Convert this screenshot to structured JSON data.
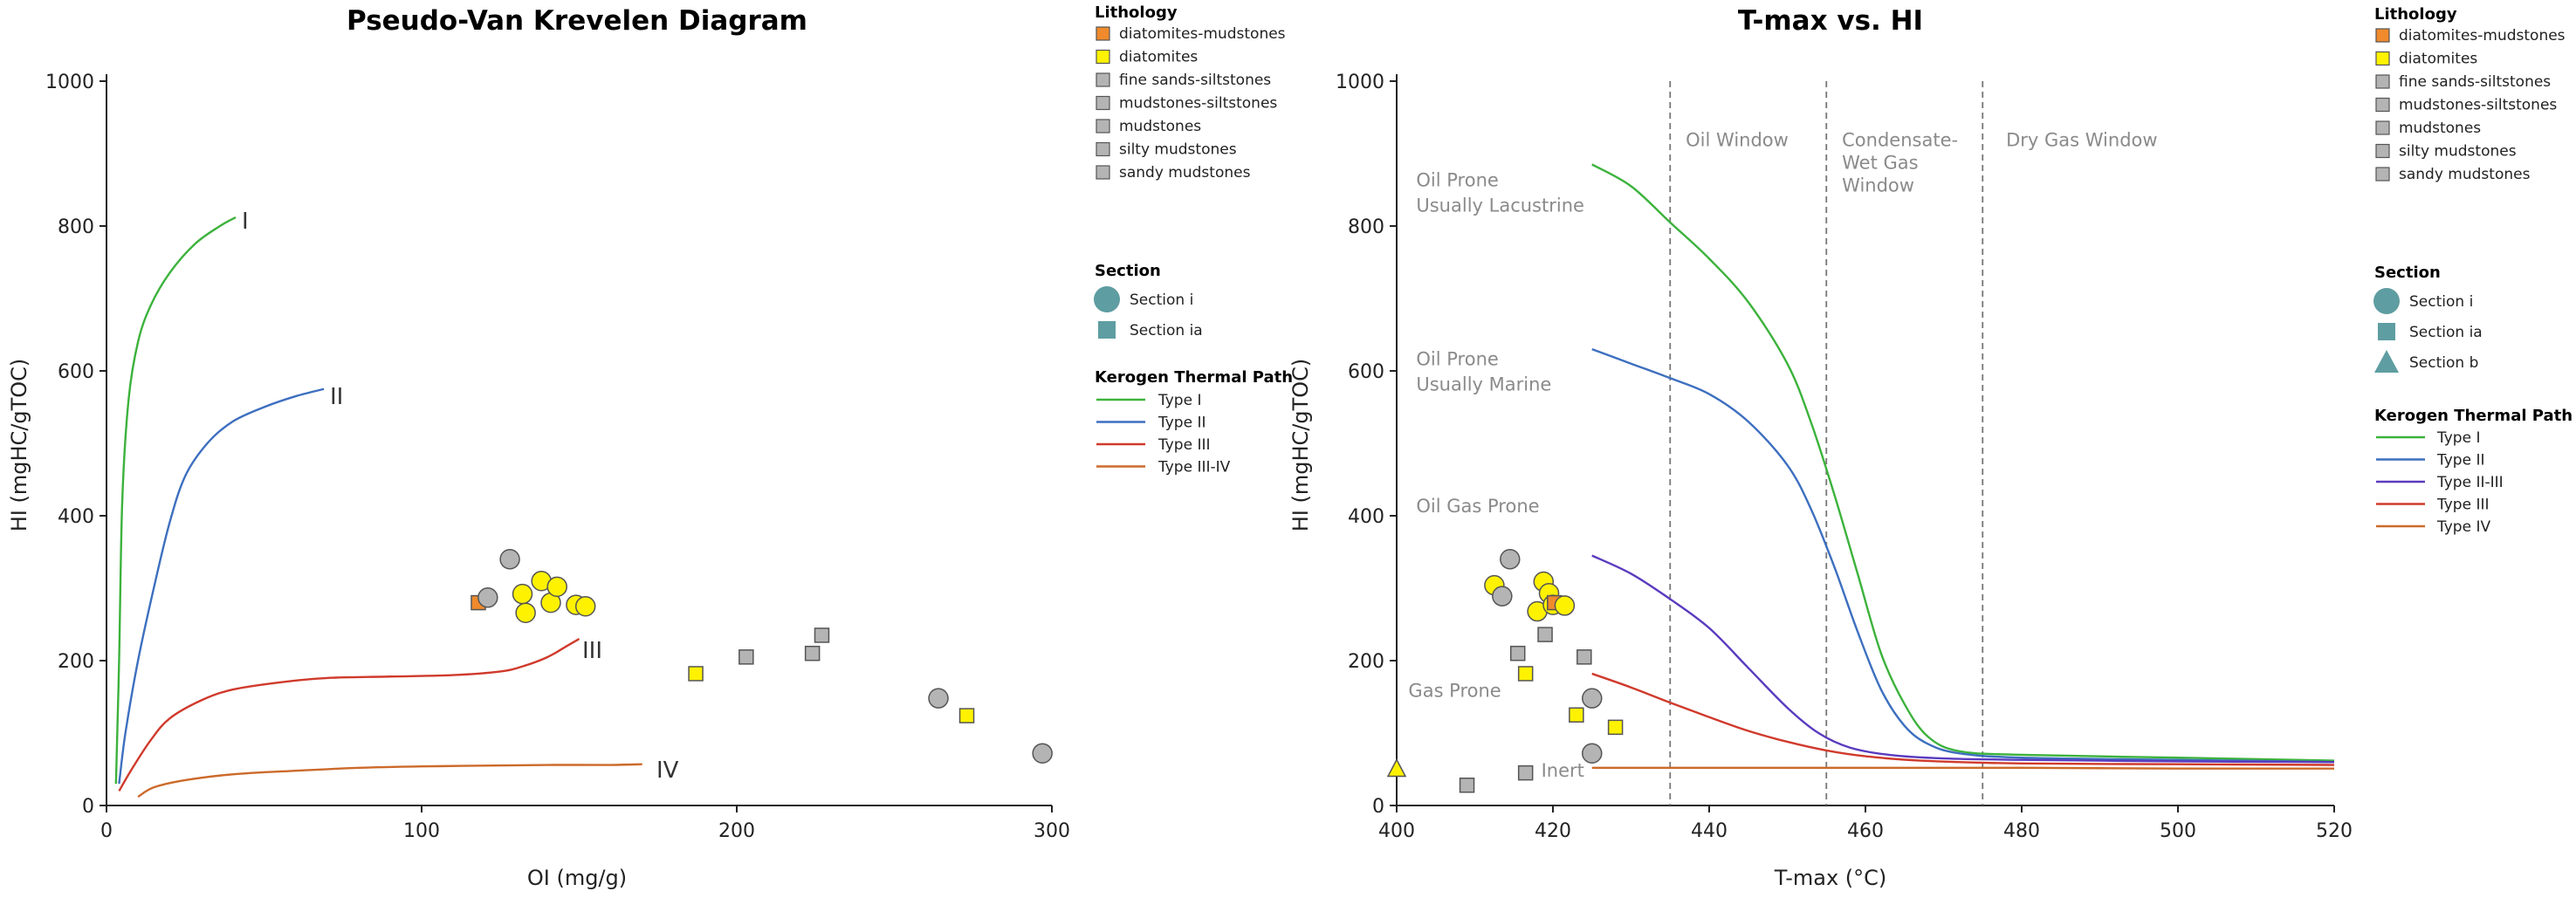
{
  "colors": {
    "diatomites-mudstones": "#f08a2c",
    "diatomites": "#fff200",
    "grey": "#b4b4b4",
    "Type I": "#3cb23c",
    "Type II": "#3d6fbf",
    "Type II-III": "#5a3bbf",
    "Type III": "#d03a2c",
    "Type III-IV": "#cc6a2a",
    "Type IV": "#cc6a2a"
  },
  "chart_data": [
    {
      "type": "scatter",
      "title": "Pseudo-Van Krevelen Diagram",
      "xlabel": "OI (mg/g)",
      "ylabel": "HI (mgHC/gTOC)",
      "xlim": [
        0,
        300
      ],
      "ylim": [
        0,
        1000
      ],
      "xticks": [
        0,
        100,
        200,
        300
      ],
      "yticks": [
        0,
        200,
        400,
        600,
        800,
        1000
      ],
      "curves": [
        {
          "name": "Type I",
          "label": "I",
          "points": [
            [
              3,
              30
            ],
            [
              4,
              200
            ],
            [
              5,
              420
            ],
            [
              7,
              560
            ],
            [
              10,
              640
            ],
            [
              14,
              690
            ],
            [
              20,
              735
            ],
            [
              28,
              775
            ],
            [
              36,
              800
            ],
            [
              41,
              812
            ]
          ]
        },
        {
          "name": "Type II",
          "label": "II",
          "points": [
            [
              4,
              30
            ],
            [
              6,
              100
            ],
            [
              10,
              200
            ],
            [
              15,
              300
            ],
            [
              20,
              390
            ],
            [
              25,
              455
            ],
            [
              32,
              500
            ],
            [
              40,
              530
            ],
            [
              50,
              550
            ],
            [
              60,
              565
            ],
            [
              69,
              575
            ]
          ]
        },
        {
          "name": "Type III",
          "label": "III",
          "points": [
            [
              4,
              20
            ],
            [
              8,
              50
            ],
            [
              14,
              90
            ],
            [
              20,
              120
            ],
            [
              30,
              145
            ],
            [
              40,
              160
            ],
            [
              55,
              170
            ],
            [
              70,
              176
            ],
            [
              90,
              178
            ],
            [
              110,
              180
            ],
            [
              125,
              185
            ],
            [
              132,
              192
            ],
            [
              140,
              205
            ],
            [
              146,
              220
            ],
            [
              150,
              230
            ]
          ]
        },
        {
          "name": "Type III-IV",
          "label": "IV",
          "points": [
            [
              10,
              12
            ],
            [
              15,
              25
            ],
            [
              25,
              35
            ],
            [
              40,
              43
            ],
            [
              60,
              48
            ],
            [
              80,
              52
            ],
            [
              100,
              54
            ],
            [
              120,
              55
            ],
            [
              140,
              56
            ],
            [
              160,
              56
            ],
            [
              170,
              57
            ]
          ]
        }
      ],
      "points": [
        {
          "x": 118,
          "y": 280,
          "lith": "diatomites-mudstones",
          "section": "Section ia"
        },
        {
          "x": 121,
          "y": 287,
          "lith": "mudstones",
          "section": "Section i"
        },
        {
          "x": 128,
          "y": 340,
          "lith": "mudstones",
          "section": "Section i"
        },
        {
          "x": 132,
          "y": 292,
          "lith": "diatomites",
          "section": "Section i"
        },
        {
          "x": 133,
          "y": 266,
          "lith": "diatomites",
          "section": "Section i"
        },
        {
          "x": 138,
          "y": 310,
          "lith": "diatomites",
          "section": "Section i"
        },
        {
          "x": 141,
          "y": 280,
          "lith": "diatomites",
          "section": "Section i"
        },
        {
          "x": 143,
          "y": 302,
          "lith": "diatomites",
          "section": "Section i"
        },
        {
          "x": 149,
          "y": 277,
          "lith": "diatomites",
          "section": "Section i"
        },
        {
          "x": 152,
          "y": 275,
          "lith": "diatomites",
          "section": "Section i"
        },
        {
          "x": 187,
          "y": 182,
          "lith": "diatomites",
          "section": "Section ia"
        },
        {
          "x": 203,
          "y": 205,
          "lith": "fine sands-siltstones",
          "section": "Section ia"
        },
        {
          "x": 224,
          "y": 210,
          "lith": "mudstones-siltstones",
          "section": "Section ia"
        },
        {
          "x": 227,
          "y": 235,
          "lith": "silty mudstones",
          "section": "Section ia"
        },
        {
          "x": 264,
          "y": 148,
          "lith": "mudstones",
          "section": "Section i"
        },
        {
          "x": 273,
          "y": 124,
          "lith": "diatomites",
          "section": "Section ia"
        },
        {
          "x": 297,
          "y": 72,
          "lith": "mudstones",
          "section": "Section i"
        }
      ],
      "legend": {
        "lithology_title": "Lithology",
        "lithology": [
          "diatomites-mudstones",
          "diatomites",
          "fine sands-siltstones",
          "mudstones-siltstones",
          "mudstones",
          "silty mudstones",
          "sandy mudstones"
        ],
        "section_title": "Section",
        "sections": [
          "Section i",
          "Section ia"
        ],
        "kerogen_title": "Kerogen Thermal Path",
        "kerogen": [
          "Type I",
          "Type II",
          "Type III",
          "Type III-IV"
        ]
      }
    },
    {
      "type": "scatter",
      "title": "T-max vs. HI",
      "xlabel": "T-max (°C)",
      "ylabel": "HI (mgHC/gTOC)",
      "xlim": [
        400,
        520
      ],
      "ylim": [
        0,
        1000
      ],
      "xticks": [
        400,
        420,
        440,
        460,
        480,
        500,
        520
      ],
      "yticks": [
        0,
        200,
        400,
        600,
        800,
        1000
      ],
      "vlines": [
        435,
        455,
        475
      ],
      "zones": [
        {
          "lines": [
            "Oil Window"
          ],
          "x": 437,
          "y": 910
        },
        {
          "lines": [
            "Condensate-",
            "Wet Gas",
            "Window"
          ],
          "x": 457,
          "y": 910
        },
        {
          "lines": [
            "Dry Gas Window"
          ],
          "x": 478,
          "y": 910
        }
      ],
      "annotations": [
        {
          "lines": [
            "Oil Prone",
            "Usually Lacustrine"
          ],
          "x": 402.5,
          "y": 855
        },
        {
          "lines": [
            "Oil Prone",
            "Usually Marine"
          ],
          "x": 402.5,
          "y": 608
        },
        {
          "lines": [
            "Oil Gas Prone"
          ],
          "x": 402.5,
          "y": 405
        },
        {
          "lines": [
            "Gas Prone"
          ],
          "x": 401.5,
          "y": 150
        },
        {
          "lines": [
            "Inert"
          ],
          "x": 418.5,
          "y": 40
        }
      ],
      "curves": [
        {
          "name": "Type I",
          "points": [
            [
              425,
              885
            ],
            [
              430,
              855
            ],
            [
              435,
              805
            ],
            [
              440,
              755
            ],
            [
              445,
              695
            ],
            [
              450,
              610
            ],
            [
              453,
              530
            ],
            [
              456,
              430
            ],
            [
              459,
              320
            ],
            [
              462,
              210
            ],
            [
              465,
              140
            ],
            [
              468,
              95
            ],
            [
              472,
              75
            ],
            [
              480,
              70
            ],
            [
              500,
              66
            ],
            [
              520,
              62
            ]
          ]
        },
        {
          "name": "Type II",
          "points": [
            [
              425,
              630
            ],
            [
              430,
              610
            ],
            [
              435,
              590
            ],
            [
              440,
              568
            ],
            [
              445,
              530
            ],
            [
              450,
              470
            ],
            [
              453,
              410
            ],
            [
              456,
              330
            ],
            [
              459,
              240
            ],
            [
              462,
              160
            ],
            [
              465,
              110
            ],
            [
              468,
              85
            ],
            [
              472,
              72
            ],
            [
              480,
              66
            ],
            [
              500,
              63
            ],
            [
              520,
              60
            ]
          ]
        },
        {
          "name": "Type II-III",
          "points": [
            [
              425,
              345
            ],
            [
              430,
              320
            ],
            [
              435,
              285
            ],
            [
              440,
              245
            ],
            [
              445,
              190
            ],
            [
              450,
              135
            ],
            [
              454,
              100
            ],
            [
              458,
              80
            ],
            [
              463,
              70
            ],
            [
              470,
              65
            ],
            [
              480,
              63
            ],
            [
              500,
              61
            ],
            [
              520,
              60
            ]
          ]
        },
        {
          "name": "Type III",
          "points": [
            [
              425,
              182
            ],
            [
              430,
              163
            ],
            [
              435,
              142
            ],
            [
              440,
              122
            ],
            [
              445,
              103
            ],
            [
              450,
              88
            ],
            [
              455,
              76
            ],
            [
              460,
              68
            ],
            [
              467,
              62
            ],
            [
              480,
              58
            ],
            [
              500,
              57
            ],
            [
              520,
              56
            ]
          ]
        },
        {
          "name": "Type IV",
          "points": [
            [
              425,
              52
            ],
            [
              440,
              52
            ],
            [
              460,
              52
            ],
            [
              480,
              52
            ],
            [
              500,
              51
            ],
            [
              520,
              51
            ]
          ]
        }
      ],
      "points": [
        {
          "x": 412.5,
          "y": 304,
          "lith": "diatomites",
          "section": "Section i"
        },
        {
          "x": 413.5,
          "y": 289,
          "lith": "mudstones",
          "section": "Section i"
        },
        {
          "x": 414.5,
          "y": 340,
          "lith": "mudstones",
          "section": "Section i"
        },
        {
          "x": 415.5,
          "y": 210,
          "lith": "mudstones-siltstones",
          "section": "Section ia"
        },
        {
          "x": 416.5,
          "y": 182,
          "lith": "diatomites",
          "section": "Section ia"
        },
        {
          "x": 418,
          "y": 268,
          "lith": "diatomites",
          "section": "Section i"
        },
        {
          "x": 418.8,
          "y": 309,
          "lith": "diatomites",
          "section": "Section i"
        },
        {
          "x": 419,
          "y": 236,
          "lith": "silty mudstones",
          "section": "Section ia"
        },
        {
          "x": 419.5,
          "y": 293,
          "lith": "diatomites",
          "section": "Section i"
        },
        {
          "x": 420,
          "y": 277,
          "lith": "diatomites",
          "section": "Section i"
        },
        {
          "x": 420.2,
          "y": 280,
          "lith": "diatomites-mudstones",
          "section": "Section ia"
        },
        {
          "x": 421.5,
          "y": 276,
          "lith": "diatomites",
          "section": "Section i"
        },
        {
          "x": 423,
          "y": 125,
          "lith": "diatomites",
          "section": "Section ia"
        },
        {
          "x": 424,
          "y": 205,
          "lith": "fine sands-siltstones",
          "section": "Section ia"
        },
        {
          "x": 425,
          "y": 148,
          "lith": "mudstones",
          "section": "Section i"
        },
        {
          "x": 425,
          "y": 72,
          "lith": "mudstones",
          "section": "Section i"
        },
        {
          "x": 428,
          "y": 108,
          "lith": "diatomites",
          "section": "Section ia"
        },
        {
          "x": 416.5,
          "y": 45,
          "lith": "sandy mudstones",
          "section": "Section ia"
        },
        {
          "x": 409,
          "y": 28,
          "lith": "sandy mudstones",
          "section": "Section ia"
        },
        {
          "x": 400,
          "y": 50,
          "lith": "diatomites",
          "section": "Section b"
        }
      ],
      "legend": {
        "lithology_title": "Lithology",
        "lithology": [
          "diatomites-mudstones",
          "diatomites",
          "fine sands-siltstones",
          "mudstones-siltstones",
          "mudstones",
          "silty mudstones",
          "sandy mudstones"
        ],
        "section_title": "Section",
        "sections": [
          "Section i",
          "Section ia",
          "Section b"
        ],
        "kerogen_title": "Kerogen Thermal Path",
        "kerogen": [
          "Type I",
          "Type II",
          "Type II-III",
          "Type III",
          "Type IV"
        ]
      }
    }
  ]
}
